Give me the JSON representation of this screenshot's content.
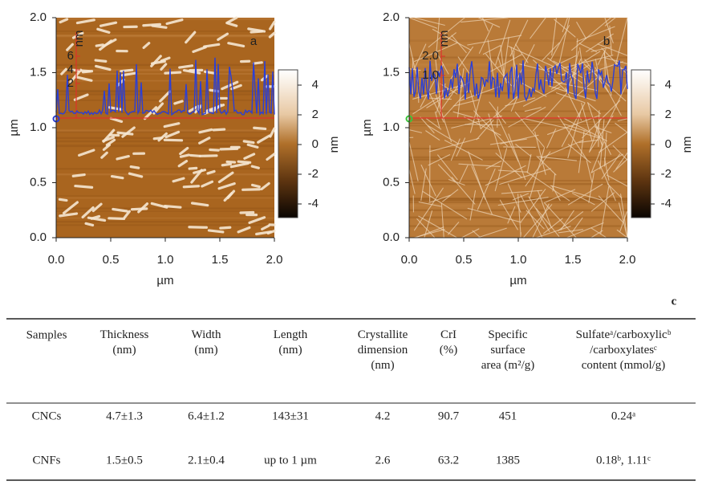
{
  "panels": [
    {
      "label": "a",
      "xlabel": "µm",
      "ylabel": "µm",
      "xticks": [
        "0.0",
        "0.5",
        "1.0",
        "1.5",
        "2.0"
      ],
      "yticks": [
        "0.0",
        "0.5",
        "1.0",
        "1.5",
        "2.0"
      ],
      "profile_unit": "nm",
      "profile_ticks": [
        "6",
        "4",
        "2"
      ],
      "colorbar": {
        "unit": "nm",
        "ticks": [
          "4",
          "2",
          "0",
          "-2",
          "-4"
        ]
      }
    },
    {
      "label": "b",
      "xlabel": "µm",
      "ylabel": "µm",
      "xticks": [
        "0.0",
        "0.5",
        "1.0",
        "1.5",
        "2.0"
      ],
      "yticks": [
        "0.0",
        "0.5",
        "1.0",
        "1.5",
        "2.0"
      ],
      "profile_unit": "nm",
      "profile_ticks": [
        "2.0",
        "1.0"
      ],
      "colorbar": {
        "unit": "nm",
        "ticks": [
          "4",
          "2",
          "0",
          "-2",
          "-4"
        ]
      }
    }
  ],
  "table": {
    "label": "c",
    "header": [
      "Samples",
      "Thickness\n(nm)",
      "Width\n(nm)",
      "Length\n(nm)",
      "Crystallite\ndimension\n(nm)",
      "CrI\n(%)",
      "Specific\nsurface\narea (m²/g)",
      "Sulfateᵃ/carboxylicᵇ\n/carboxylatesᶜ\ncontent (mmol/g)"
    ],
    "rows": [
      [
        "CNCs",
        "4.7±1.3",
        "6.4±1.2",
        "143±31",
        "4.2",
        "90.7",
        "451",
        "0.24ᵃ"
      ],
      [
        "CNFs",
        "1.5±0.5",
        "2.1±0.4",
        "up to 1 µm",
        "2.6",
        "63.2",
        "1385",
        "0.18ᵇ, 1.11ᶜ"
      ]
    ]
  }
}
